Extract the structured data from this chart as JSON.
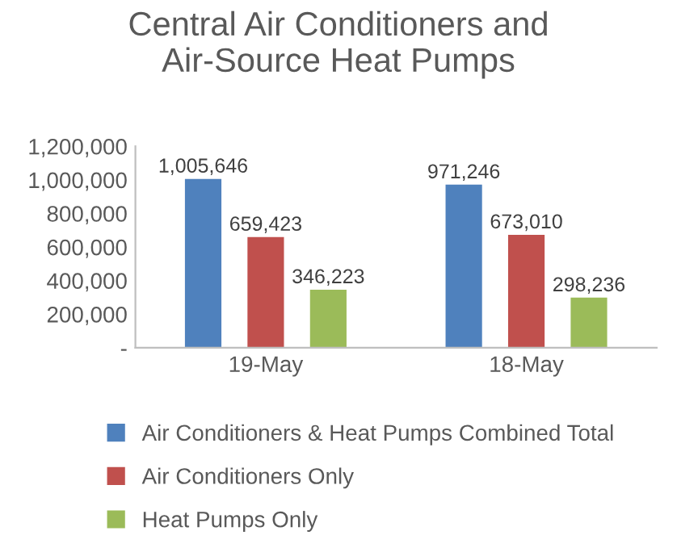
{
  "chart_data": {
    "type": "bar",
    "title": "Central Air Conditioners and\nAir-Source Heat Pumps",
    "categories": [
      "19-May",
      "18-May"
    ],
    "series": [
      {
        "name": "Air Conditioners & Heat Pumps Combined Total",
        "color": "#4f81bd",
        "values": [
          1005646,
          971246
        ],
        "value_labels": [
          "1,005,646",
          "971,246"
        ]
      },
      {
        "name": "Air Conditioners Only",
        "color": "#c0504d",
        "values": [
          659423,
          673010
        ],
        "value_labels": [
          "659,423",
          "673,010"
        ]
      },
      {
        "name": "Heat Pumps Only",
        "color": "#9bbb59",
        "values": [
          346223,
          298236
        ],
        "value_labels": [
          "346,223",
          "298,236"
        ]
      }
    ],
    "ylim": [
      0,
      1200000
    ],
    "yticks": [
      {
        "value": 0,
        "label": "-"
      },
      {
        "value": 200000,
        "label": "200,000"
      },
      {
        "value": 400000,
        "label": "400,000"
      },
      {
        "value": 600000,
        "label": "600,000"
      },
      {
        "value": 800000,
        "label": "800,000"
      },
      {
        "value": 1000000,
        "label": "1,000,000"
      },
      {
        "value": 1200000,
        "label": "1,200,000"
      }
    ],
    "grid": false,
    "legend": "bottom"
  }
}
